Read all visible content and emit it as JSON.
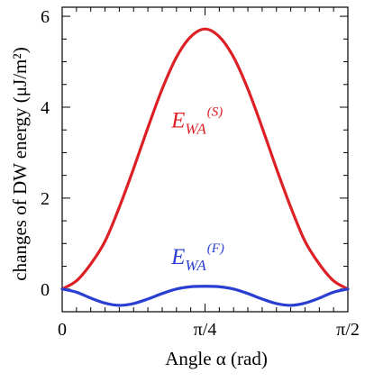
{
  "chart_data": {
    "type": "line",
    "title": "",
    "xlabel": "Angle α (rad)",
    "ylabel": "changes of DW energy (μJ/m²)",
    "xlim": [
      0,
      1.5708
    ],
    "ylim": [
      -0.5,
      6.2
    ],
    "grid": false,
    "legend": "none",
    "x_ticks": [
      {
        "value": 0,
        "label": "0"
      },
      {
        "value": 0.7854,
        "label": "π/4"
      },
      {
        "value": 1.5708,
        "label": "π/2"
      }
    ],
    "y_ticks": [
      {
        "value": 0,
        "label": "0"
      },
      {
        "value": 2,
        "label": "2"
      },
      {
        "value": 4,
        "label": "4"
      },
      {
        "value": 6,
        "label": "6"
      }
    ],
    "series": [
      {
        "name": "EWA(S)",
        "color": "#dd1f26",
        "x": [
          0,
          0.0785,
          0.1571,
          0.2356,
          0.3142,
          0.3927,
          0.4712,
          0.5498,
          0.6283,
          0.7069,
          0.7854,
          0.8639,
          0.9425,
          1.021,
          1.0996,
          1.1781,
          1.2566,
          1.3352,
          1.4137,
          1.4923,
          1.5708
        ],
        "y": [
          0,
          0.18,
          0.55,
          1.05,
          1.8,
          2.65,
          3.55,
          4.4,
          5.1,
          5.55,
          5.72,
          5.55,
          5.1,
          4.4,
          3.55,
          2.65,
          1.8,
          1.05,
          0.55,
          0.18,
          0
        ]
      },
      {
        "name": "EWA(F)",
        "color": "#2a3fd1",
        "x": [
          0,
          0.0785,
          0.1571,
          0.2356,
          0.3142,
          0.3927,
          0.4712,
          0.5498,
          0.6283,
          0.7069,
          0.7854,
          0.8639,
          0.9425,
          1.021,
          1.0996,
          1.1781,
          1.2566,
          1.3352,
          1.4137,
          1.4923,
          1.5708
        ],
        "y": [
          0,
          -0.07,
          -0.2,
          -0.31,
          -0.36,
          -0.32,
          -0.22,
          -0.1,
          0.0,
          0.05,
          0.06,
          0.05,
          0.0,
          -0.1,
          -0.22,
          -0.32,
          -0.36,
          -0.31,
          -0.2,
          -0.07,
          0
        ]
      }
    ],
    "annotations": [
      {
        "series": 0,
        "main": "E",
        "sub": "WA",
        "sup": "(S)",
        "x": 0.6,
        "y": 3.55
      },
      {
        "series": 1,
        "main": "E",
        "sub": "WA",
        "sup": "(F)",
        "x": 0.6,
        "y": 0.55
      }
    ]
  }
}
